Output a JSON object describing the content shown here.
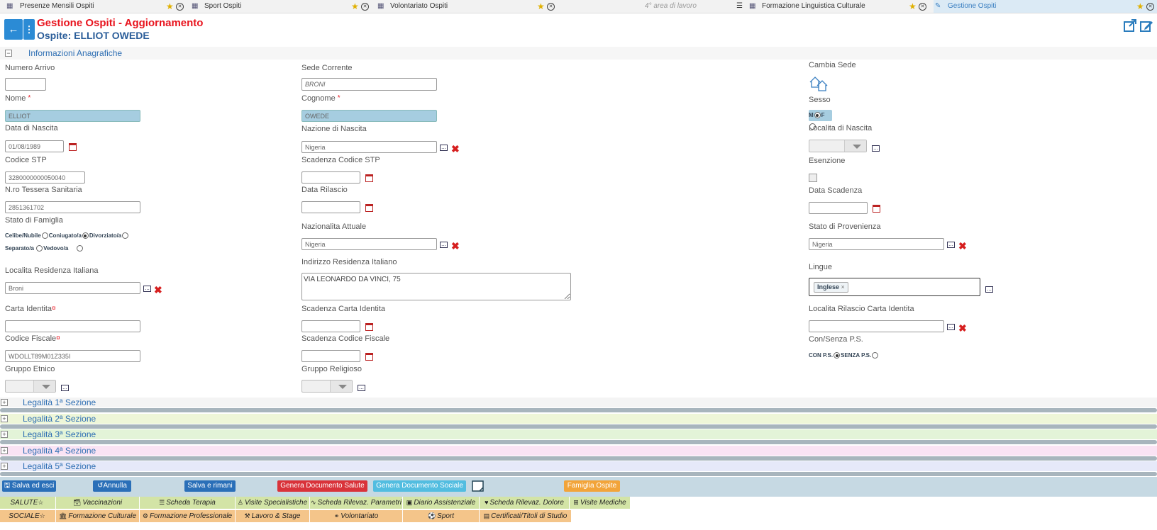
{
  "tabs": [
    {
      "label": "Presenze Mensili Ospiti",
      "icon": "table-icon"
    },
    {
      "label": "Sport Ospiti",
      "icon": "table-icon"
    },
    {
      "label": "Volontariato Ospiti",
      "icon": "table-icon"
    },
    {
      "label": "4° area di lavoro",
      "icon": "none"
    },
    {
      "label": "Formazione Linguistica Culturale",
      "icon": "table-icon"
    },
    {
      "label": "Gestione Ospiti",
      "icon": "edit-icon",
      "active": true
    }
  ],
  "header": {
    "title": "Gestione Ospiti - Aggiornamento",
    "subtitle": "Ospite: ELLIOT OWEDE"
  },
  "section": {
    "title": "Informazioni Anagrafiche"
  },
  "fields": {
    "numero_arrivo": {
      "label": "Numero Arrivo",
      "value": ""
    },
    "sede_corrente": {
      "label": "Sede Corrente",
      "value": "BRONI"
    },
    "cambia_sede": {
      "label": "Cambia Sede"
    },
    "nome": {
      "label": "Nome",
      "value": "ELLIOT"
    },
    "cognome": {
      "label": "Cognome",
      "value": "OWEDE"
    },
    "sesso": {
      "label": "Sesso",
      "options": [
        "M",
        "F"
      ],
      "selected": "M"
    },
    "data_nascita": {
      "label": "Data di Nascita",
      "value": "01/08/1989"
    },
    "nazione_nascita": {
      "label": "Nazione di Nascita",
      "value": "Nigeria"
    },
    "localita_nascita": {
      "label": "Localita di Nascita",
      "value": ""
    },
    "codice_stp": {
      "label": "Codice STP",
      "value": "3280000000050040"
    },
    "scadenza_stp": {
      "label": "Scadenza Codice STP",
      "value": ""
    },
    "esenzione": {
      "label": "Esenzione"
    },
    "tessera": {
      "label": "N.ro Tessera Sanitaria",
      "value": "2851361702"
    },
    "data_rilascio": {
      "label": "Data Rilascio",
      "value": ""
    },
    "data_scadenza": {
      "label": "Data Scadenza",
      "value": ""
    },
    "stato_famiglia": {
      "label": "Stato di Famiglia",
      "options": [
        "Celibe/Nubile",
        "Coniugato/a",
        "Divorziato/a",
        "Separato/a",
        "Vedovo/a"
      ],
      "selected": "Divorziato/a"
    },
    "nazionalita": {
      "label": "Nazionalita Attuale",
      "value": "Nigeria"
    },
    "stato_provenienza": {
      "label": "Stato di Provenienza",
      "value": "Nigeria"
    },
    "localita_residenza": {
      "label": "Localita Residenza Italiana",
      "value": "Broni"
    },
    "indirizzo": {
      "label": "Indirizzo Residenza Italiano",
      "value": "VIA LEONARDO DA VINCI, 75"
    },
    "lingue": {
      "label": "Lingue",
      "tags": [
        "Inglese"
      ]
    },
    "carta_identita": {
      "label": "Carta Identita",
      "value": ""
    },
    "scadenza_carta": {
      "label": "Scadenza Carta Identita",
      "value": ""
    },
    "localita_rilascio": {
      "label": "Localita Rilascio Carta Identita",
      "value": ""
    },
    "codice_fiscale": {
      "label": "Codice Fiscale",
      "value": "WDOLLT89M01Z335I"
    },
    "scadenza_cf": {
      "label": "Scadenza Codice Fiscale",
      "value": ""
    },
    "con_senza_ps": {
      "label": "Con/Senza P.S.",
      "options": [
        "CON P.S.",
        "SENZA P.S."
      ],
      "selected": "CON P.S."
    },
    "gruppo_etnico": {
      "label": "Gruppo Etnico",
      "value": ""
    },
    "gruppo_religioso": {
      "label": "Gruppo Religioso",
      "value": ""
    }
  },
  "legalita": [
    {
      "title": "Legalità 1ª Sezione",
      "color": "#f4f4f4"
    },
    {
      "title": "Legalità 2ª Sezione",
      "color": "#eef6d8"
    },
    {
      "title": "Legalità 3ª Sezione",
      "color": "#e3f4d8"
    },
    {
      "title": "Legalità 4ª Sezione",
      "color": "#fae3f4"
    },
    {
      "title": "Legalità 5ª Sezione",
      "color": "#e6e9f9"
    }
  ],
  "actions": {
    "salva_esci": "Salva ed esci",
    "annulla": "Annulla",
    "salva_rimani": "Salva e rimani",
    "doc_salute": "Genera Documento Salute",
    "doc_sociale": "Genera Documento Sociale",
    "famiglia": "Famiglia Ospite"
  },
  "nav_salute": [
    "SALUTE",
    "Vaccinazioni",
    "Scheda Terapia",
    "Visite Specialistiche",
    "Scheda Rilevaz. Parametri",
    "Diario Assistenziale",
    "Scheda Rilevaz. Dolore",
    "Visite Mediche"
  ],
  "nav_sociale": [
    "SOCIALE",
    "Formazione Culturale",
    "Formazione Professionale",
    "Lavoro & Stage",
    "Volontariato",
    "Sport",
    "Certificati/Titoli di Studio"
  ],
  "colors": {
    "accent": "#2b8bd5",
    "title_red": "#e8141e",
    "nav_green": "#d3e4a6",
    "nav_orange": "#f4c58a"
  }
}
